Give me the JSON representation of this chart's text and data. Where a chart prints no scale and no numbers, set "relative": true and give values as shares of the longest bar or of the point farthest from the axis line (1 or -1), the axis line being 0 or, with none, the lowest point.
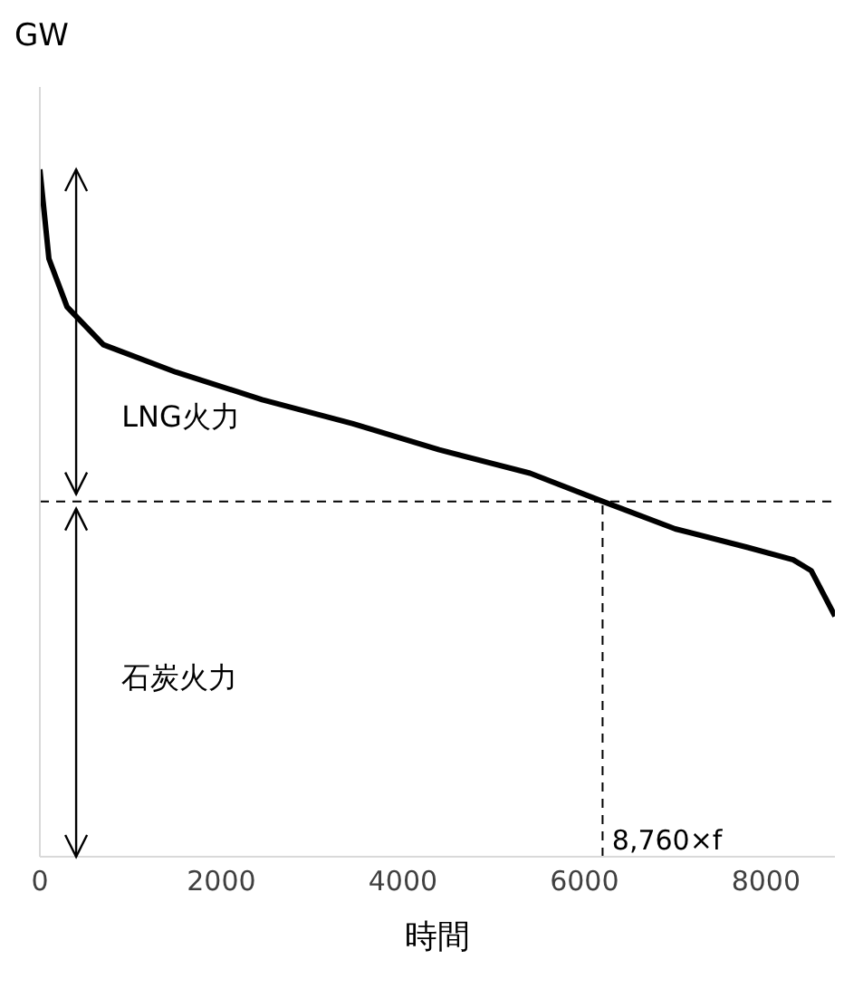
{
  "chart_data": {
    "type": "line",
    "relative": true,
    "ylabel": "GW",
    "xlabel": "時間",
    "xlim": [
      0,
      8760
    ],
    "xticks": [
      0,
      2000,
      4000,
      6000,
      8000
    ],
    "grid": false,
    "legend": false,
    "marker": "none",
    "line_style": "solid",
    "series": [
      {
        "color": "#000000",
        "x": [
          0,
          100,
          300,
          700,
          1500,
          2450,
          3450,
          4400,
          5400,
          6200,
          7000,
          7800,
          8300,
          8500,
          8650,
          8760
        ],
        "values": [
          1.0,
          0.87,
          0.8,
          0.745,
          0.705,
          0.665,
          0.63,
          0.592,
          0.558,
          0.517,
          0.477,
          0.45,
          0.432,
          0.416,
          0.378,
          0.35
        ]
      }
    ],
    "ref_lines": [
      {
        "axis": "y",
        "value": 0.517,
        "line_style": "dashed",
        "color": "#000000"
      },
      {
        "axis": "x",
        "value": 6200,
        "label": "8,760×f",
        "line_style": "dashed",
        "color": "#000000"
      }
    ],
    "annotations": [
      "LNG火力",
      "石炭火力"
    ]
  }
}
